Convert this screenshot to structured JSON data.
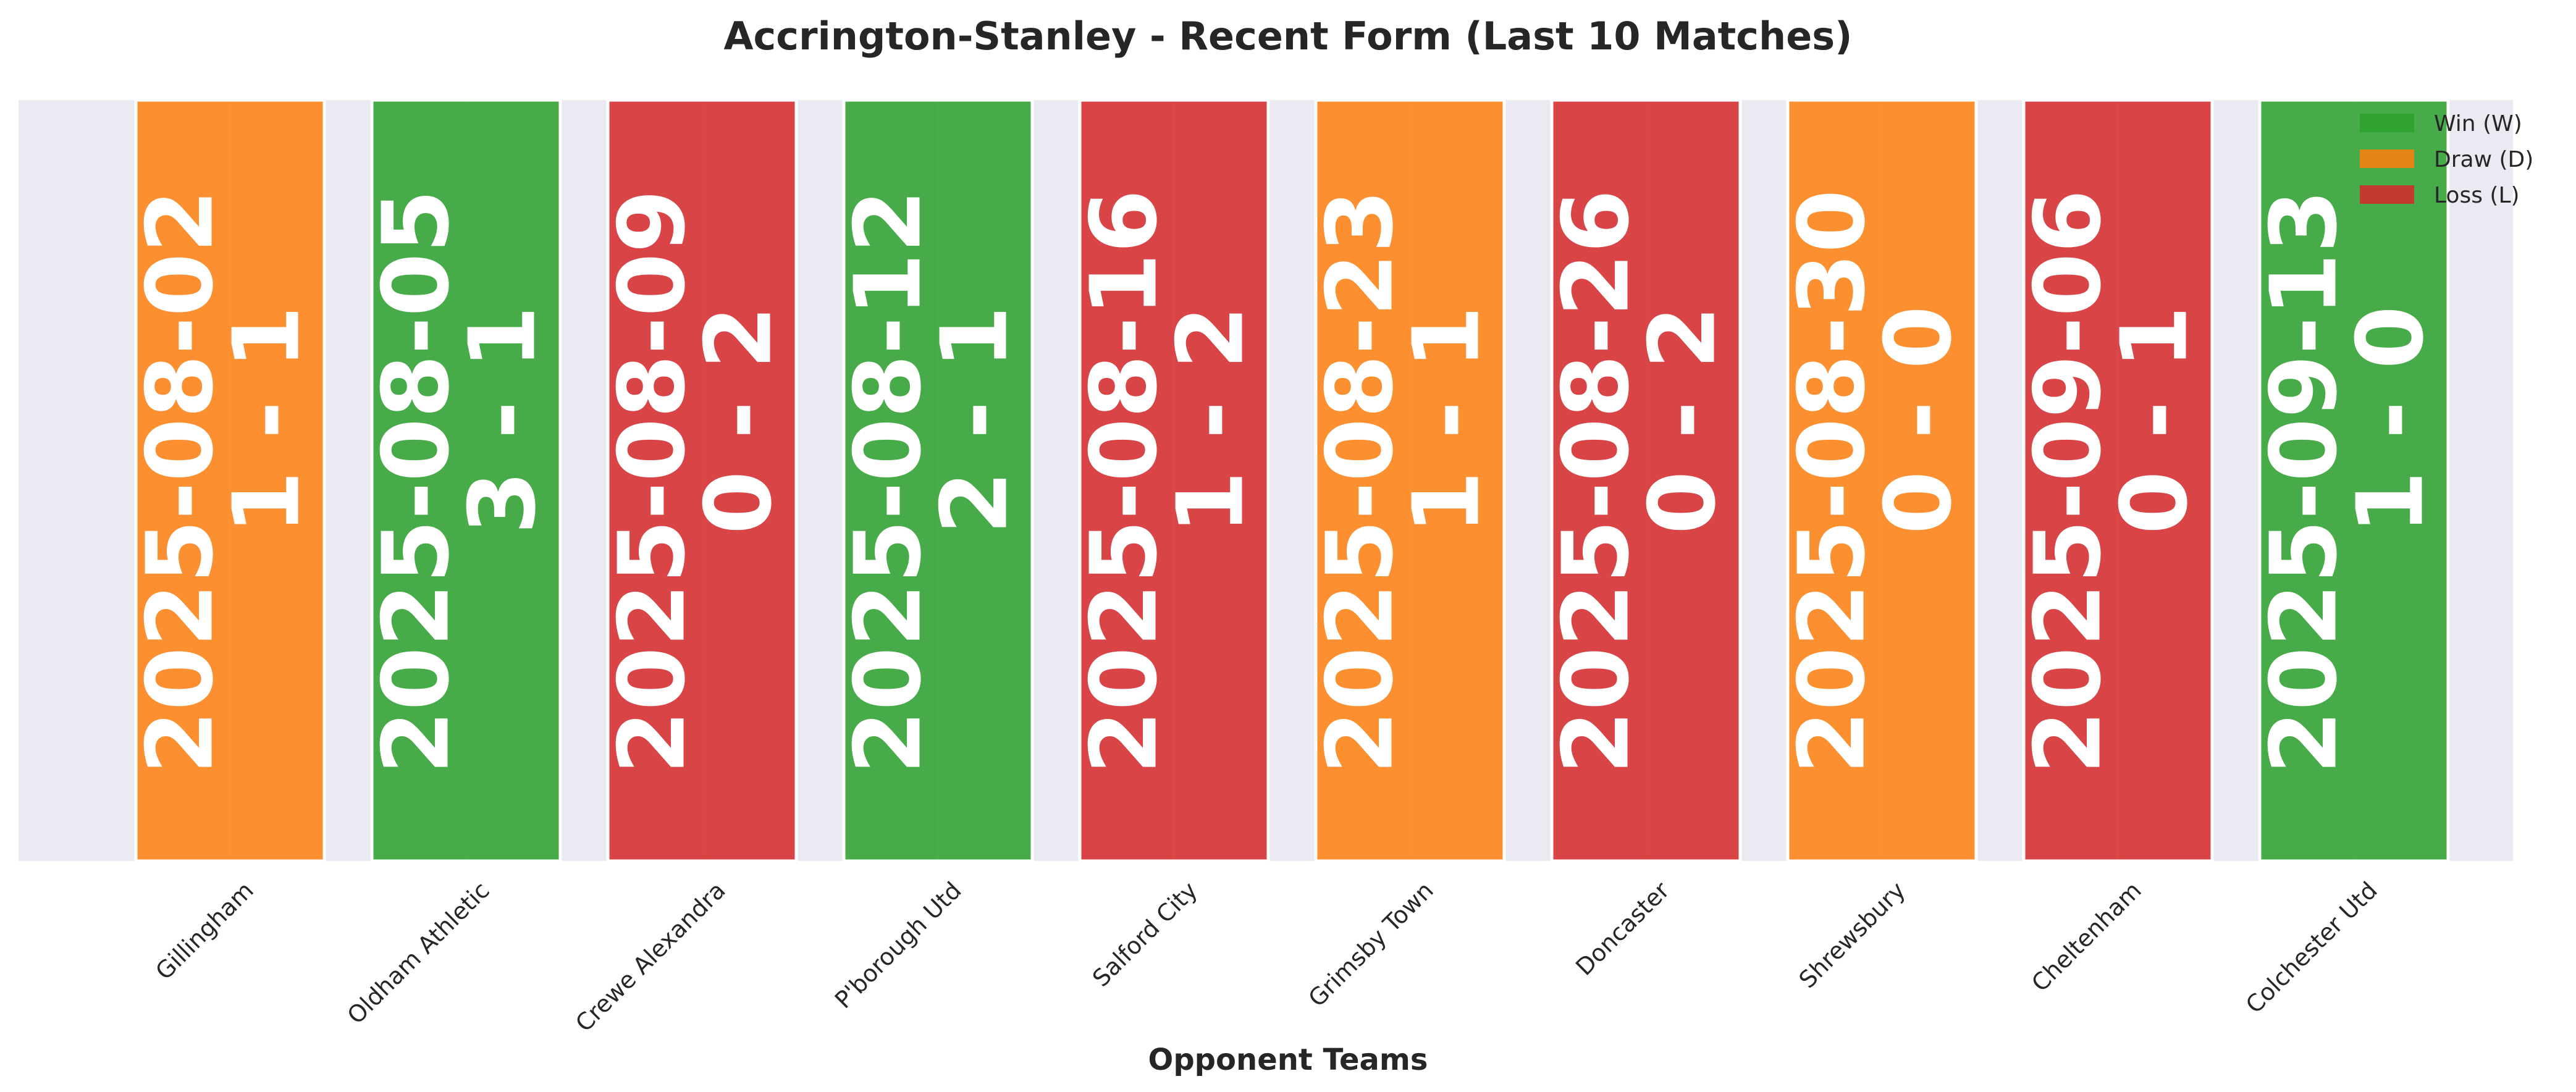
{
  "chart_data": {
    "type": "bar",
    "title": "Accrington-Stanley - Recent Form (Last 10 Matches)",
    "xlabel": "Opponent Teams",
    "ylabel": "",
    "grid": true,
    "legend_position": "top-right",
    "legend": [
      {
        "key": "W",
        "label": "Win (W)",
        "color": "#2ca02c"
      },
      {
        "key": "D",
        "label": "Draw (D)",
        "color": "#ff7f0e"
      },
      {
        "key": "L",
        "label": "Loss (L)",
        "color": "#d62728"
      }
    ],
    "categories": [
      "Gillingham",
      "Oldham Athletic",
      "Crewe Alexandra",
      "P'borough Utd",
      "Salford City",
      "Grimsby Town",
      "Doncaster",
      "Shrewsbury",
      "Cheltenham",
      "Colchester Utd"
    ],
    "values": [
      1,
      1,
      1,
      1,
      1,
      1,
      1,
      1,
      1,
      1
    ],
    "results": [
      "D",
      "W",
      "L",
      "W",
      "L",
      "D",
      "L",
      "D",
      "L",
      "W"
    ],
    "dates": [
      "2025-08-02",
      "2025-08-05",
      "2025-08-09",
      "2025-08-12",
      "2025-08-16",
      "2025-08-23",
      "2025-08-26",
      "2025-08-30",
      "2025-09-06",
      "2025-09-13"
    ],
    "scores": [
      "1 - 1",
      "3 - 1",
      "0 - 2",
      "2 - 1",
      "1 - 2",
      "1 - 1",
      "0 - 2",
      "0 - 0",
      "0 - 1",
      "1 - 0"
    ]
  },
  "colors": {
    "win": "#2ca02c",
    "draw": "#ff7f0e",
    "loss": "#d62728",
    "plot_background": "#eaeaf2",
    "grid": "#ffffff"
  }
}
